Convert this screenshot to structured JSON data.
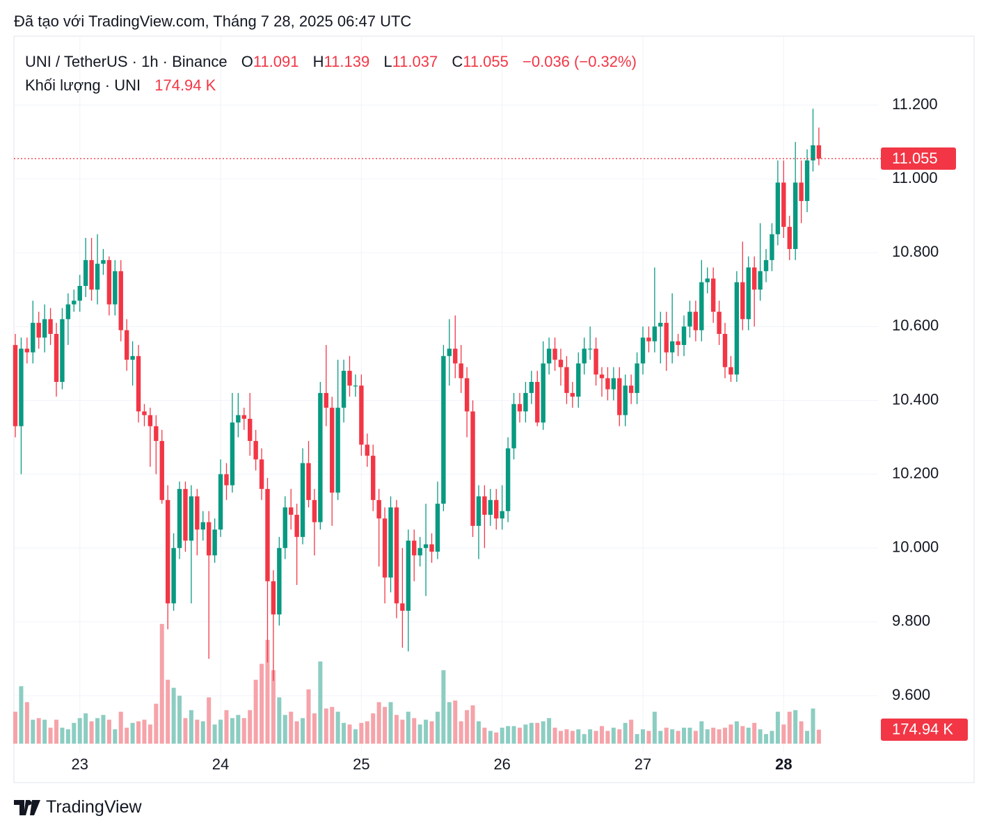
{
  "title": "Đã tạo với TradingView.com, Tháng 7 28, 2025 06:47 UTC",
  "chart_data": {
    "type": "candlestick",
    "symbol": "UNI / TetherUS · 1h · Binance",
    "ohlc_labels": [
      "O",
      "H",
      "L",
      "C"
    ],
    "change_label": "−0.036 (−0.32%)",
    "categories": [
      null,
      null,
      null,
      null,
      null,
      null,
      null,
      null,
      null,
      null,
      null,
      "23",
      null,
      null,
      null,
      null,
      null,
      null,
      null,
      null,
      null,
      null,
      null,
      null,
      null,
      null,
      null,
      null,
      null,
      null,
      null,
      null,
      null,
      null,
      null,
      "24",
      null,
      null,
      null,
      null,
      null,
      null,
      null,
      null,
      null,
      null,
      null,
      null,
      null,
      null,
      null,
      null,
      null,
      null,
      null,
      null,
      null,
      null,
      null,
      "25",
      null,
      null,
      null,
      null,
      null,
      null,
      null,
      null,
      null,
      null,
      null,
      null,
      null,
      null,
      null,
      null,
      null,
      null,
      null,
      null,
      null,
      null,
      null,
      "26",
      null,
      null,
      null,
      null,
      null,
      null,
      null,
      null,
      null,
      null,
      null,
      null,
      null,
      null,
      null,
      null,
      null,
      null,
      null,
      null,
      null,
      null,
      null,
      "27",
      null,
      null,
      null,
      null,
      null,
      null,
      null,
      null,
      null,
      null,
      null,
      null,
      null,
      null,
      null,
      null,
      null,
      null,
      null,
      null,
      null,
      null,
      null,
      "28",
      null,
      null,
      null,
      null,
      null,
      null
    ],
    "open": [
      10.55,
      10.33,
      10.54,
      10.53,
      10.61,
      10.57,
      10.62,
      10.58,
      10.45,
      10.62,
      10.66,
      10.67,
      10.71,
      10.78,
      10.7,
      10.77,
      10.78,
      10.66,
      10.75,
      10.59,
      10.51,
      10.52,
      10.37,
      10.36,
      10.33,
      10.29,
      10.13,
      9.85,
      10.0,
      10.16,
      10.02,
      10.14,
      10.05,
      10.07,
      9.98,
      10.05,
      10.2,
      10.17,
      10.34,
      10.36,
      10.35,
      10.29,
      10.24,
      10.16,
      9.91,
      9.82,
      10.0,
      10.11,
      10.09,
      10.03,
      10.23,
      10.13,
      10.07,
      10.42,
      10.38,
      10.15,
      10.38,
      10.48,
      10.44,
      10.44,
      10.28,
      10.25,
      10.13,
      10.08,
      9.92,
      10.11,
      9.85,
      9.83,
      10.02,
      9.98,
      10.0,
      10.01,
      9.99,
      10.12,
      10.52,
      10.54,
      10.5,
      10.46,
      10.37,
      10.06,
      10.14,
      10.09,
      10.13,
      10.08,
      10.1,
      10.27,
      10.39,
      10.37,
      10.42,
      10.45,
      10.34,
      10.5,
      10.54,
      10.51,
      10.49,
      10.42,
      10.41,
      10.5,
      10.54,
      10.54,
      10.47,
      10.46,
      10.43,
      10.46,
      10.36,
      10.44,
      10.42,
      10.5,
      10.57,
      10.56,
      10.6,
      10.61,
      10.53,
      10.56,
      10.55,
      10.6,
      10.64,
      10.59,
      10.72,
      10.73,
      10.64,
      10.58,
      10.49,
      10.47,
      10.72,
      10.62,
      10.76,
      10.7,
      10.75,
      10.78,
      10.85,
      10.99,
      10.87,
      10.81,
      10.99,
      10.94,
      11.05,
      11.091
    ],
    "high": [
      10.58,
      10.57,
      10.57,
      10.67,
      10.64,
      10.66,
      10.65,
      10.61,
      10.65,
      10.69,
      10.7,
      10.74,
      10.84,
      10.84,
      10.85,
      10.81,
      10.79,
      10.78,
      10.78,
      10.62,
      10.56,
      10.55,
      10.39,
      10.38,
      10.36,
      10.32,
      10.17,
      10.04,
      10.18,
      10.18,
      10.17,
      10.16,
      10.1,
      10.1,
      10.08,
      10.24,
      10.23,
      10.42,
      10.42,
      10.38,
      10.42,
      10.32,
      10.27,
      10.19,
      9.94,
      10.03,
      10.14,
      10.16,
      10.12,
      10.27,
      10.29,
      10.16,
      10.45,
      10.55,
      10.41,
      10.51,
      10.51,
      10.52,
      10.47,
      10.47,
      10.31,
      10.28,
      10.16,
      10.11,
      10.14,
      10.13,
      10.0,
      10.05,
      10.05,
      10.03,
      10.12,
      10.04,
      10.18,
      10.55,
      10.62,
      10.63,
      10.55,
      10.49,
      10.4,
      10.17,
      10.17,
      10.16,
      10.16,
      10.17,
      10.3,
      10.42,
      10.42,
      10.45,
      10.48,
      10.48,
      10.56,
      10.57,
      10.57,
      10.54,
      10.52,
      10.45,
      10.53,
      10.57,
      10.6,
      10.57,
      10.49,
      10.49,
      10.49,
      10.49,
      10.47,
      10.47,
      10.53,
      10.6,
      10.6,
      10.76,
      10.64,
      10.64,
      10.69,
      10.58,
      10.63,
      10.67,
      10.67,
      10.78,
      10.76,
      10.76,
      10.67,
      10.61,
      10.52,
      10.75,
      10.83,
      10.79,
      10.79,
      10.88,
      10.81,
      10.88,
      11.05,
      11.05,
      10.9,
      11.1,
      11.05,
      11.08,
      11.19,
      11.139
    ],
    "low": [
      10.3,
      10.2,
      10.5,
      10.5,
      10.54,
      10.53,
      10.55,
      10.41,
      10.43,
      10.55,
      10.64,
      10.64,
      10.68,
      10.67,
      10.66,
      10.74,
      10.63,
      10.63,
      10.56,
      10.48,
      10.44,
      10.34,
      10.33,
      10.22,
      10.2,
      10.12,
      9.78,
      9.83,
      9.97,
      9.99,
      9.85,
      9.98,
      10.02,
      9.7,
      9.96,
      10.03,
      10.13,
      10.15,
      10.3,
      10.32,
      10.25,
      10.21,
      10.13,
      9.69,
      9.64,
      9.79,
      9.97,
      10.05,
      9.9,
      10.01,
      10.11,
      9.98,
      10.05,
      10.33,
      10.06,
      10.13,
      10.34,
      10.41,
      10.41,
      10.25,
      10.22,
      10.1,
      9.95,
      9.85,
      9.88,
      9.81,
      9.73,
      9.72,
      9.91,
      9.95,
      9.87,
      9.96,
      9.97,
      10.1,
      10.44,
      10.46,
      10.42,
      10.3,
      10.03,
      9.97,
      10.0,
      10.06,
      10.05,
      10.05,
      10.07,
      10.24,
      10.34,
      10.34,
      10.39,
      10.33,
      10.32,
      10.47,
      10.48,
      10.44,
      10.39,
      10.38,
      10.38,
      10.47,
      10.51,
      10.44,
      10.41,
      10.4,
      10.4,
      10.33,
      10.33,
      10.39,
      10.39,
      10.47,
      10.53,
      10.53,
      10.5,
      10.48,
      10.5,
      10.52,
      10.52,
      10.57,
      10.56,
      10.56,
      10.69,
      10.61,
      10.55,
      10.46,
      10.45,
      10.45,
      10.59,
      10.59,
      10.6,
      10.67,
      10.72,
      10.75,
      10.82,
      10.84,
      10.78,
      10.78,
      10.88,
      10.91,
      11.02,
      11.037
    ],
    "close": [
      10.33,
      10.54,
      10.53,
      10.61,
      10.57,
      10.62,
      10.58,
      10.45,
      10.62,
      10.66,
      10.67,
      10.71,
      10.78,
      10.7,
      10.77,
      10.78,
      10.66,
      10.75,
      10.59,
      10.51,
      10.52,
      10.37,
      10.36,
      10.33,
      10.29,
      10.13,
      9.85,
      10.0,
      10.16,
      10.02,
      10.14,
      10.05,
      10.07,
      9.98,
      10.05,
      10.2,
      10.17,
      10.34,
      10.36,
      10.35,
      10.29,
      10.24,
      10.16,
      9.91,
      9.82,
      10.0,
      10.11,
      10.09,
      10.03,
      10.23,
      10.13,
      10.07,
      10.42,
      10.38,
      10.15,
      10.38,
      10.48,
      10.44,
      10.44,
      10.28,
      10.25,
      10.13,
      10.08,
      9.92,
      10.11,
      9.85,
      9.83,
      10.02,
      9.98,
      10.0,
      10.01,
      9.99,
      10.12,
      10.52,
      10.54,
      10.5,
      10.46,
      10.37,
      10.06,
      10.14,
      10.09,
      10.13,
      10.08,
      10.1,
      10.27,
      10.39,
      10.37,
      10.42,
      10.45,
      10.34,
      10.5,
      10.54,
      10.51,
      10.49,
      10.42,
      10.41,
      10.5,
      10.54,
      10.54,
      10.47,
      10.46,
      10.43,
      10.46,
      10.36,
      10.44,
      10.42,
      10.5,
      10.57,
      10.56,
      10.6,
      10.61,
      10.53,
      10.56,
      10.55,
      10.6,
      10.64,
      10.59,
      10.72,
      10.73,
      10.64,
      10.58,
      10.49,
      10.47,
      10.72,
      10.62,
      10.76,
      10.7,
      10.75,
      10.78,
      10.85,
      10.99,
      10.87,
      10.81,
      10.99,
      10.94,
      11.05,
      11.091,
      11.055
    ],
    "volume": {
      "name": "Khối lượng · UNI",
      "axis": "y2",
      "last_value_label": "174.94 K",
      "values": [
        400,
        720,
        520,
        300,
        320,
        300,
        200,
        300,
        200,
        180,
        260,
        320,
        380,
        280,
        320,
        360,
        300,
        180,
        400,
        200,
        260,
        280,
        300,
        240,
        500,
        1500,
        800,
        700,
        600,
        320,
        420,
        300,
        280,
        580,
        240,
        300,
        420,
        320,
        360,
        320,
        420,
        800,
        1000,
        1300,
        920,
        580,
        360,
        400,
        280,
        320,
        680,
        380,
        1030,
        440,
        460,
        400,
        260,
        240,
        180,
        260,
        280,
        380,
        520,
        460,
        520,
        360,
        300,
        400,
        320,
        240,
        300,
        280,
        400,
        920,
        520,
        540,
        280,
        420,
        480,
        280,
        200,
        160,
        140,
        200,
        220,
        220,
        200,
        240,
        260,
        260,
        280,
        320,
        200,
        160,
        180,
        160,
        180,
        120,
        180,
        160,
        220,
        160,
        200,
        180,
        260,
        300,
        120,
        180,
        160,
        400,
        160,
        200,
        180,
        160,
        200,
        200,
        160,
        280,
        180,
        200,
        180,
        200,
        240,
        280,
        220,
        200,
        260,
        180,
        120,
        160,
        400,
        240,
        400,
        420,
        280,
        160,
        440,
        174.94
      ]
    },
    "colors": {
      "up": "#089981",
      "down": "#f23645",
      "up_volume": "#8ccdc2",
      "down_volume": "#f5a3a9"
    },
    "ylim": [
      9.47,
      11.2
    ],
    "yticks": [
      {
        "value": 9.6,
        "label": "9.600"
      },
      {
        "value": 9.8,
        "label": "9.800"
      },
      {
        "value": 10.0,
        "label": "10.000"
      },
      {
        "value": 10.2,
        "label": "10.200"
      },
      {
        "value": 10.4,
        "label": "10.400"
      },
      {
        "value": 10.6,
        "label": "10.600"
      },
      {
        "value": 10.8,
        "label": "10.800"
      },
      {
        "value": 11.0,
        "label": "11.000"
      },
      {
        "value": 11.2,
        "label": "11.200"
      }
    ],
    "y2lim": [
      0,
      8000
    ],
    "grid": true
  },
  "footer": {
    "brand": "TradingView"
  }
}
